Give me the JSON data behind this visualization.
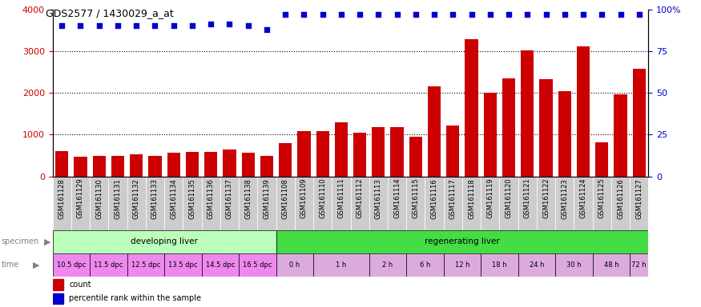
{
  "title": "GDS2577 / 1430029_a_at",
  "samples": [
    "GSM161128",
    "GSM161129",
    "GSM161130",
    "GSM161131",
    "GSM161132",
    "GSM161133",
    "GSM161134",
    "GSM161135",
    "GSM161136",
    "GSM161137",
    "GSM161138",
    "GSM161139",
    "GSM161108",
    "GSM161109",
    "GSM161110",
    "GSM161111",
    "GSM161112",
    "GSM161113",
    "GSM161114",
    "GSM161115",
    "GSM161116",
    "GSM161117",
    "GSM161118",
    "GSM161119",
    "GSM161120",
    "GSM161121",
    "GSM161122",
    "GSM161123",
    "GSM161124",
    "GSM161125",
    "GSM161126",
    "GSM161127"
  ],
  "counts": [
    600,
    480,
    490,
    500,
    540,
    490,
    570,
    580,
    590,
    640,
    570,
    490,
    790,
    1090,
    1090,
    1300,
    1050,
    1190,
    1190,
    960,
    2150,
    1210,
    3290,
    2000,
    2340,
    3020,
    2320,
    2040,
    3110,
    820,
    1960,
    2570
  ],
  "percentiles": [
    90,
    90,
    90,
    90,
    90,
    90,
    90,
    90,
    91,
    91,
    90,
    88,
    97,
    97,
    97,
    97,
    97,
    97,
    97,
    97,
    97,
    97,
    97,
    97,
    97,
    97,
    97,
    97,
    97,
    97,
    97,
    97
  ],
  "bar_color": "#cc0000",
  "dot_color": "#0000cc",
  "ylim_left": [
    0,
    4000
  ],
  "ylim_right": [
    0,
    100
  ],
  "yticks_left": [
    0,
    1000,
    2000,
    3000,
    4000
  ],
  "yticks_right": [
    0,
    25,
    50,
    75,
    100
  ],
  "specimen_groups": [
    {
      "label": "developing liver",
      "start": 0,
      "end": 12,
      "color": "#bbffbb"
    },
    {
      "label": "regenerating liver",
      "start": 12,
      "end": 32,
      "color": "#44dd44"
    }
  ],
  "time_labels": [
    {
      "label": "10.5 dpc",
      "start": 0,
      "end": 2,
      "dpc": true
    },
    {
      "label": "11.5 dpc",
      "start": 2,
      "end": 4,
      "dpc": true
    },
    {
      "label": "12.5 dpc",
      "start": 4,
      "end": 6,
      "dpc": true
    },
    {
      "label": "13.5 dpc",
      "start": 6,
      "end": 8,
      "dpc": true
    },
    {
      "label": "14.5 dpc",
      "start": 8,
      "end": 10,
      "dpc": true
    },
    {
      "label": "16.5 dpc",
      "start": 10,
      "end": 12,
      "dpc": true
    },
    {
      "label": "0 h",
      "start": 12,
      "end": 14,
      "dpc": false
    },
    {
      "label": "1 h",
      "start": 14,
      "end": 17,
      "dpc": false
    },
    {
      "label": "2 h",
      "start": 17,
      "end": 19,
      "dpc": false
    },
    {
      "label": "6 h",
      "start": 19,
      "end": 21,
      "dpc": false
    },
    {
      "label": "12 h",
      "start": 21,
      "end": 23,
      "dpc": false
    },
    {
      "label": "18 h",
      "start": 23,
      "end": 25,
      "dpc": false
    },
    {
      "label": "24 h",
      "start": 25,
      "end": 27,
      "dpc": false
    },
    {
      "label": "30 h",
      "start": 27,
      "end": 29,
      "dpc": false
    },
    {
      "label": "48 h",
      "start": 29,
      "end": 31,
      "dpc": false
    },
    {
      "label": "72 h",
      "start": 31,
      "end": 32,
      "dpc": false
    }
  ],
  "time_color_dpc": "#ee88ee",
  "time_color_h": "#ddaadd",
  "label_bg_color": "#cccccc",
  "legend_count_color": "#cc0000",
  "legend_pct_color": "#0000cc",
  "tick_color_left": "#cc0000",
  "tick_color_right": "#0000cc"
}
